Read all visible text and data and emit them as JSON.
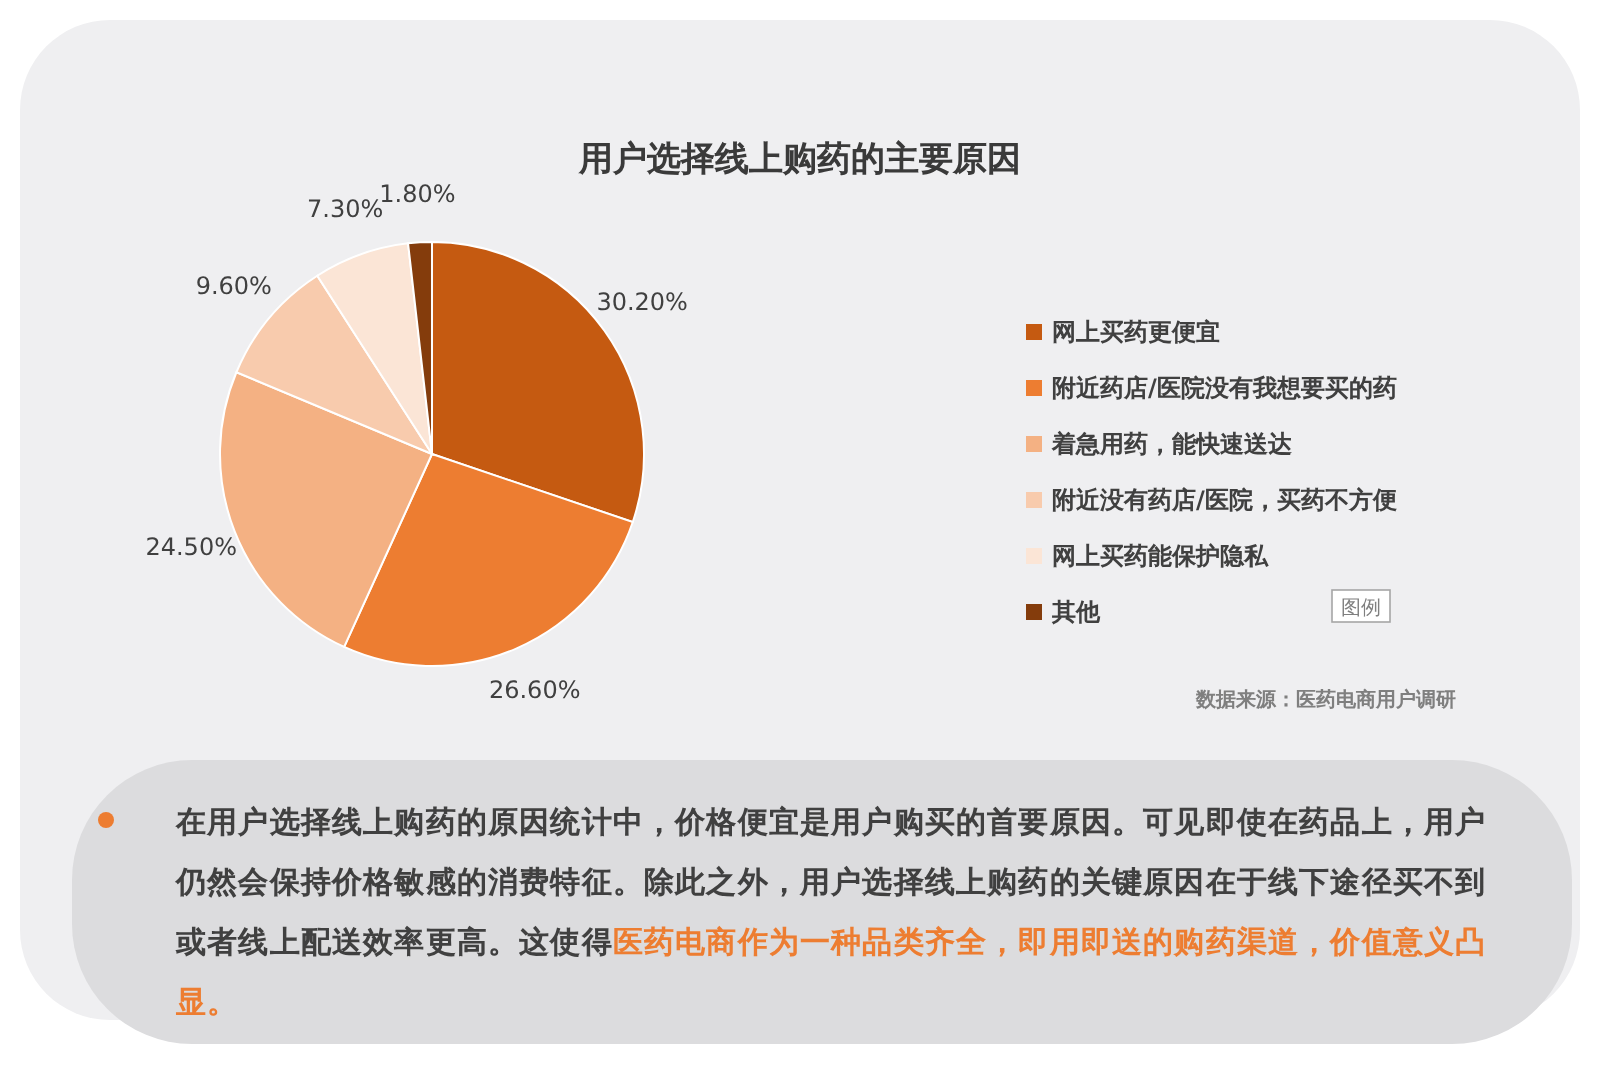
{
  "chart_data": {
    "type": "pie",
    "title": "用户选择线上购药的主要原因",
    "categories": [
      "网上买药更便宜",
      "附近药店/医院没有我想要买的药",
      "着急用药，能快速送达",
      "附近没有药店/医院，买药不方便",
      "网上买药能保护隐私",
      "其他"
    ],
    "values": [
      30.2,
      26.6,
      24.5,
      9.6,
      7.3,
      1.8
    ],
    "value_labels": [
      "30.20%",
      "26.60%",
      "24.50%",
      "9.60%",
      "7.30%",
      "1.80%"
    ],
    "colors": [
      "#c55a11",
      "#ed7d31",
      "#f4b183",
      "#f8cbad",
      "#fbe5d6",
      "#843c0c"
    ],
    "legend": "right",
    "legend_title": "图例",
    "annotations": [
      "数据来源：医药电商用户调研",
      "在用户选择线上购药的原因统计中，价格便宜是用户购买的首要原因。可见即使在药品上，用户仍然会保持价格敏感的消费特征。除此之外，用户选择线上购药的关键原因在于线下途径买不到或者线上配送效率更高。这使得",
      "医药电商作为一种品类齐全，即用即送的购药渠道，价值意义凸显。"
    ]
  }
}
